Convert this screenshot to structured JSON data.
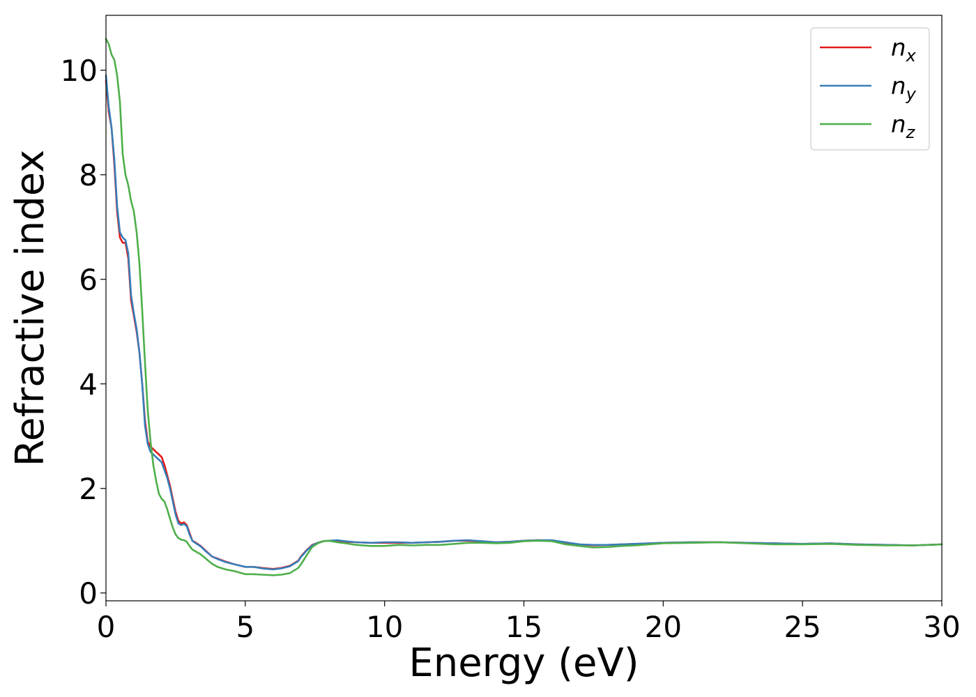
{
  "chart_data": {
    "type": "line",
    "xlabel": "Energy (eV)",
    "ylabel": "Refractive index",
    "xlim": [
      0,
      30
    ],
    "ylim": [
      -0.15,
      11.05
    ],
    "xticks": [
      0,
      5,
      10,
      15,
      20,
      25,
      30
    ],
    "yticks": [
      0,
      2,
      4,
      6,
      8,
      10
    ],
    "grid": false,
    "legend_position": "top-right",
    "series": [
      {
        "name": "n",
        "subscript": "x",
        "color": "#e41a1c",
        "x": [
          0,
          0.1,
          0.2,
          0.3,
          0.4,
          0.5,
          0.6,
          0.7,
          0.8,
          0.9,
          1.0,
          1.1,
          1.2,
          1.3,
          1.4,
          1.5,
          1.6,
          1.7,
          1.8,
          1.9,
          2.0,
          2.1,
          2.2,
          2.3,
          2.4,
          2.5,
          2.6,
          2.7,
          2.8,
          2.9,
          3.0,
          3.1,
          3.2,
          3.4,
          3.6,
          3.8,
          4.0,
          4.3,
          4.6,
          5.0,
          5.3,
          5.6,
          6.0,
          6.3,
          6.6,
          6.9,
          7.0,
          7.2,
          7.4,
          7.6,
          7.8,
          8.0,
          8.3,
          8.6,
          9.0,
          9.5,
          10.0,
          10.5,
          11.0,
          11.5,
          12.0,
          12.5,
          13.0,
          13.5,
          14.0,
          14.5,
          15.0,
          15.5,
          16.0,
          16.5,
          17.0,
          17.5,
          18.0,
          18.5,
          19.0,
          19.5,
          20.0,
          21.0,
          22.0,
          23.0,
          24.0,
          25.0,
          26.0,
          27.0,
          28.0,
          29.0,
          30.0
        ],
        "y": [
          9.8,
          9.2,
          8.9,
          8.2,
          7.3,
          6.8,
          6.7,
          6.7,
          6.4,
          5.6,
          5.3,
          5.0,
          4.6,
          4.0,
          3.3,
          2.9,
          2.8,
          2.75,
          2.7,
          2.65,
          2.6,
          2.45,
          2.25,
          2.05,
          1.8,
          1.55,
          1.38,
          1.33,
          1.35,
          1.3,
          1.15,
          1.0,
          0.97,
          0.9,
          0.8,
          0.7,
          0.66,
          0.6,
          0.55,
          0.5,
          0.5,
          0.48,
          0.46,
          0.48,
          0.52,
          0.62,
          0.7,
          0.82,
          0.92,
          0.96,
          0.99,
          1.0,
          1.0,
          0.98,
          0.97,
          0.96,
          0.96,
          0.96,
          0.96,
          0.97,
          0.98,
          1.0,
          1.0,
          0.99,
          0.97,
          0.98,
          1.0,
          1.01,
          1.0,
          0.96,
          0.93,
          0.91,
          0.92,
          0.93,
          0.94,
          0.95,
          0.96,
          0.97,
          0.97,
          0.96,
          0.95,
          0.94,
          0.95,
          0.93,
          0.92,
          0.91,
          0.93
        ]
      },
      {
        "name": "n",
        "subscript": "y",
        "color": "#377eb8",
        "x": [
          0,
          0.1,
          0.2,
          0.3,
          0.4,
          0.5,
          0.6,
          0.7,
          0.8,
          0.9,
          1.0,
          1.1,
          1.2,
          1.3,
          1.4,
          1.5,
          1.6,
          1.7,
          1.8,
          1.9,
          2.0,
          2.1,
          2.2,
          2.3,
          2.4,
          2.5,
          2.6,
          2.7,
          2.8,
          2.9,
          3.0,
          3.1,
          3.2,
          3.4,
          3.6,
          3.8,
          4.0,
          4.3,
          4.6,
          5.0,
          5.3,
          5.6,
          6.0,
          6.3,
          6.6,
          6.9,
          7.0,
          7.2,
          7.4,
          7.6,
          7.8,
          8.0,
          8.3,
          8.6,
          9.0,
          9.5,
          10.0,
          10.5,
          11.0,
          11.5,
          12.0,
          12.5,
          13.0,
          13.5,
          14.0,
          14.5,
          15.0,
          15.5,
          16.0,
          16.5,
          17.0,
          17.5,
          18.0,
          18.5,
          19.0,
          19.5,
          20.0,
          21.0,
          22.0,
          23.0,
          24.0,
          25.0,
          26.0,
          27.0,
          28.0,
          29.0,
          30.0
        ],
        "y": [
          9.9,
          9.3,
          8.9,
          8.3,
          7.4,
          6.9,
          6.8,
          6.75,
          6.5,
          5.7,
          5.35,
          5.05,
          4.6,
          4.0,
          3.2,
          2.85,
          2.7,
          2.65,
          2.6,
          2.55,
          2.5,
          2.35,
          2.2,
          2.0,
          1.75,
          1.5,
          1.33,
          1.3,
          1.32,
          1.28,
          1.12,
          1.0,
          0.96,
          0.89,
          0.79,
          0.7,
          0.65,
          0.59,
          0.55,
          0.5,
          0.5,
          0.47,
          0.45,
          0.47,
          0.51,
          0.61,
          0.69,
          0.81,
          0.91,
          0.96,
          0.99,
          1.0,
          1.01,
          0.99,
          0.97,
          0.96,
          0.97,
          0.97,
          0.96,
          0.97,
          0.98,
          1.0,
          1.01,
          0.99,
          0.97,
          0.98,
          1.0,
          1.01,
          1.01,
          0.97,
          0.93,
          0.92,
          0.92,
          0.93,
          0.94,
          0.95,
          0.96,
          0.97,
          0.97,
          0.96,
          0.95,
          0.94,
          0.95,
          0.93,
          0.92,
          0.91,
          0.93
        ]
      },
      {
        "name": "n",
        "subscript": "z",
        "color": "#4daf4a",
        "x": [
          0,
          0.1,
          0.2,
          0.3,
          0.4,
          0.5,
          0.6,
          0.7,
          0.8,
          0.9,
          1.0,
          1.1,
          1.2,
          1.3,
          1.4,
          1.5,
          1.6,
          1.7,
          1.8,
          1.9,
          2.0,
          2.1,
          2.2,
          2.3,
          2.4,
          2.5,
          2.6,
          2.7,
          2.8,
          2.9,
          3.0,
          3.1,
          3.2,
          3.4,
          3.6,
          3.8,
          4.0,
          4.3,
          4.6,
          5.0,
          5.3,
          5.6,
          6.0,
          6.3,
          6.6,
          6.9,
          7.0,
          7.2,
          7.4,
          7.6,
          7.8,
          8.0,
          8.3,
          8.6,
          9.0,
          9.5,
          10.0,
          10.5,
          11.0,
          11.5,
          12.0,
          12.5,
          13.0,
          13.5,
          14.0,
          14.5,
          15.0,
          15.5,
          16.0,
          16.5,
          17.0,
          17.5,
          18.0,
          18.5,
          19.0,
          19.5,
          20.0,
          21.0,
          22.0,
          23.0,
          24.0,
          25.0,
          26.0,
          27.0,
          28.0,
          29.0,
          30.0
        ],
        "y": [
          10.6,
          10.5,
          10.3,
          10.2,
          9.9,
          9.4,
          8.4,
          8.0,
          7.8,
          7.5,
          7.3,
          6.9,
          6.3,
          5.4,
          4.4,
          3.5,
          2.9,
          2.45,
          2.15,
          1.9,
          1.8,
          1.75,
          1.6,
          1.42,
          1.25,
          1.12,
          1.05,
          1.02,
          1.01,
          0.98,
          0.9,
          0.83,
          0.8,
          0.74,
          0.65,
          0.56,
          0.5,
          0.45,
          0.42,
          0.36,
          0.36,
          0.35,
          0.34,
          0.35,
          0.38,
          0.48,
          0.55,
          0.72,
          0.88,
          0.95,
          0.99,
          1.0,
          0.97,
          0.95,
          0.92,
          0.9,
          0.9,
          0.92,
          0.91,
          0.92,
          0.92,
          0.94,
          0.96,
          0.96,
          0.95,
          0.96,
          0.99,
          1.0,
          0.99,
          0.93,
          0.9,
          0.87,
          0.88,
          0.9,
          0.91,
          0.93,
          0.95,
          0.96,
          0.97,
          0.95,
          0.93,
          0.93,
          0.94,
          0.92,
          0.91,
          0.91,
          0.93
        ]
      }
    ]
  }
}
